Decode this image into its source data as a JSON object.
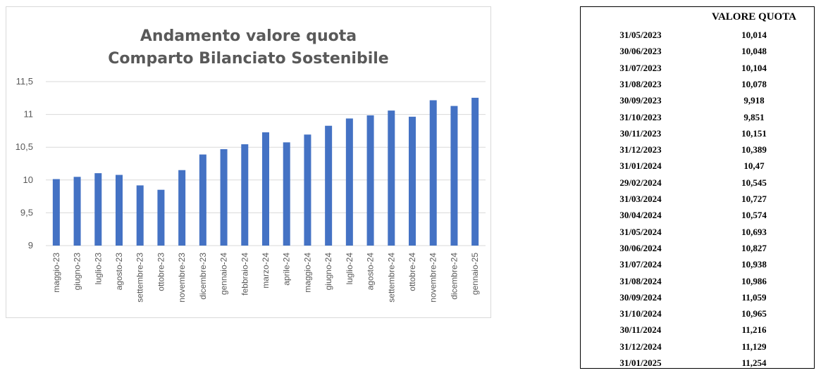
{
  "chart": {
    "title_line1": "Andamento valore quota",
    "title_line2": "Comparto Bilanciato Sostenibile"
  },
  "colors": {
    "bar": "#4472c4",
    "grid": "#d9d9d9",
    "tick_text": "#595959",
    "title": "#595959"
  },
  "chart_data": {
    "type": "bar",
    "title": "Andamento valore quota Comparto Bilanciato Sostenibile",
    "categories": [
      "maggio-23",
      "giugno-23",
      "luglio-23",
      "agosto-23",
      "settembre-23",
      "ottobre-23",
      "novembre-23",
      "dicembre-23",
      "gennaio-24",
      "febbraio-24",
      "marzo-24",
      "aprile-24",
      "maggio-24",
      "giugno-24",
      "luglio-24",
      "agosto-24",
      "settembre-24",
      "ottobre-24",
      "novembre-24",
      "dicembre-24",
      "gennaio-25"
    ],
    "values": [
      10.014,
      10.048,
      10.104,
      10.078,
      9.918,
      9.851,
      10.151,
      10.389,
      10.47,
      10.545,
      10.727,
      10.574,
      10.693,
      10.827,
      10.938,
      10.986,
      11.059,
      10.965,
      11.216,
      11.129,
      11.254
    ],
    "yticks": [
      "9",
      "9,5",
      "10",
      "10,5",
      "11",
      "11,5"
    ],
    "ylim": [
      9,
      11.5
    ],
    "grid": true,
    "xlabel": "",
    "ylabel": ""
  },
  "table": {
    "header": "VALORE QUOTA",
    "rows": [
      {
        "date": "31/05/2023",
        "value": "10,014"
      },
      {
        "date": "30/06/2023",
        "value": "10,048"
      },
      {
        "date": "31/07/2023",
        "value": "10,104"
      },
      {
        "date": "31/08/2023",
        "value": "10,078"
      },
      {
        "date": "30/09/2023",
        "value": "9,918"
      },
      {
        "date": "31/10/2023",
        "value": "9,851"
      },
      {
        "date": "30/11/2023",
        "value": "10,151"
      },
      {
        "date": "31/12/2023",
        "value": "10,389"
      },
      {
        "date": "31/01/2024",
        "value": "10,47"
      },
      {
        "date": "29/02/2024",
        "value": "10,545"
      },
      {
        "date": "31/03/2024",
        "value": "10,727"
      },
      {
        "date": "30/04/2024",
        "value": "10,574"
      },
      {
        "date": "31/05/2024",
        "value": "10,693"
      },
      {
        "date": "30/06/2024",
        "value": "10,827"
      },
      {
        "date": "31/07/2024",
        "value": "10,938"
      },
      {
        "date": "31/08/2024",
        "value": "10,986"
      },
      {
        "date": "30/09/2024",
        "value": "11,059"
      },
      {
        "date": "31/10/2024",
        "value": "10,965"
      },
      {
        "date": "30/11/2024",
        "value": "11,216"
      },
      {
        "date": "31/12/2024",
        "value": "11,129"
      },
      {
        "date": "31/01/2025",
        "value": "11,254"
      }
    ]
  }
}
